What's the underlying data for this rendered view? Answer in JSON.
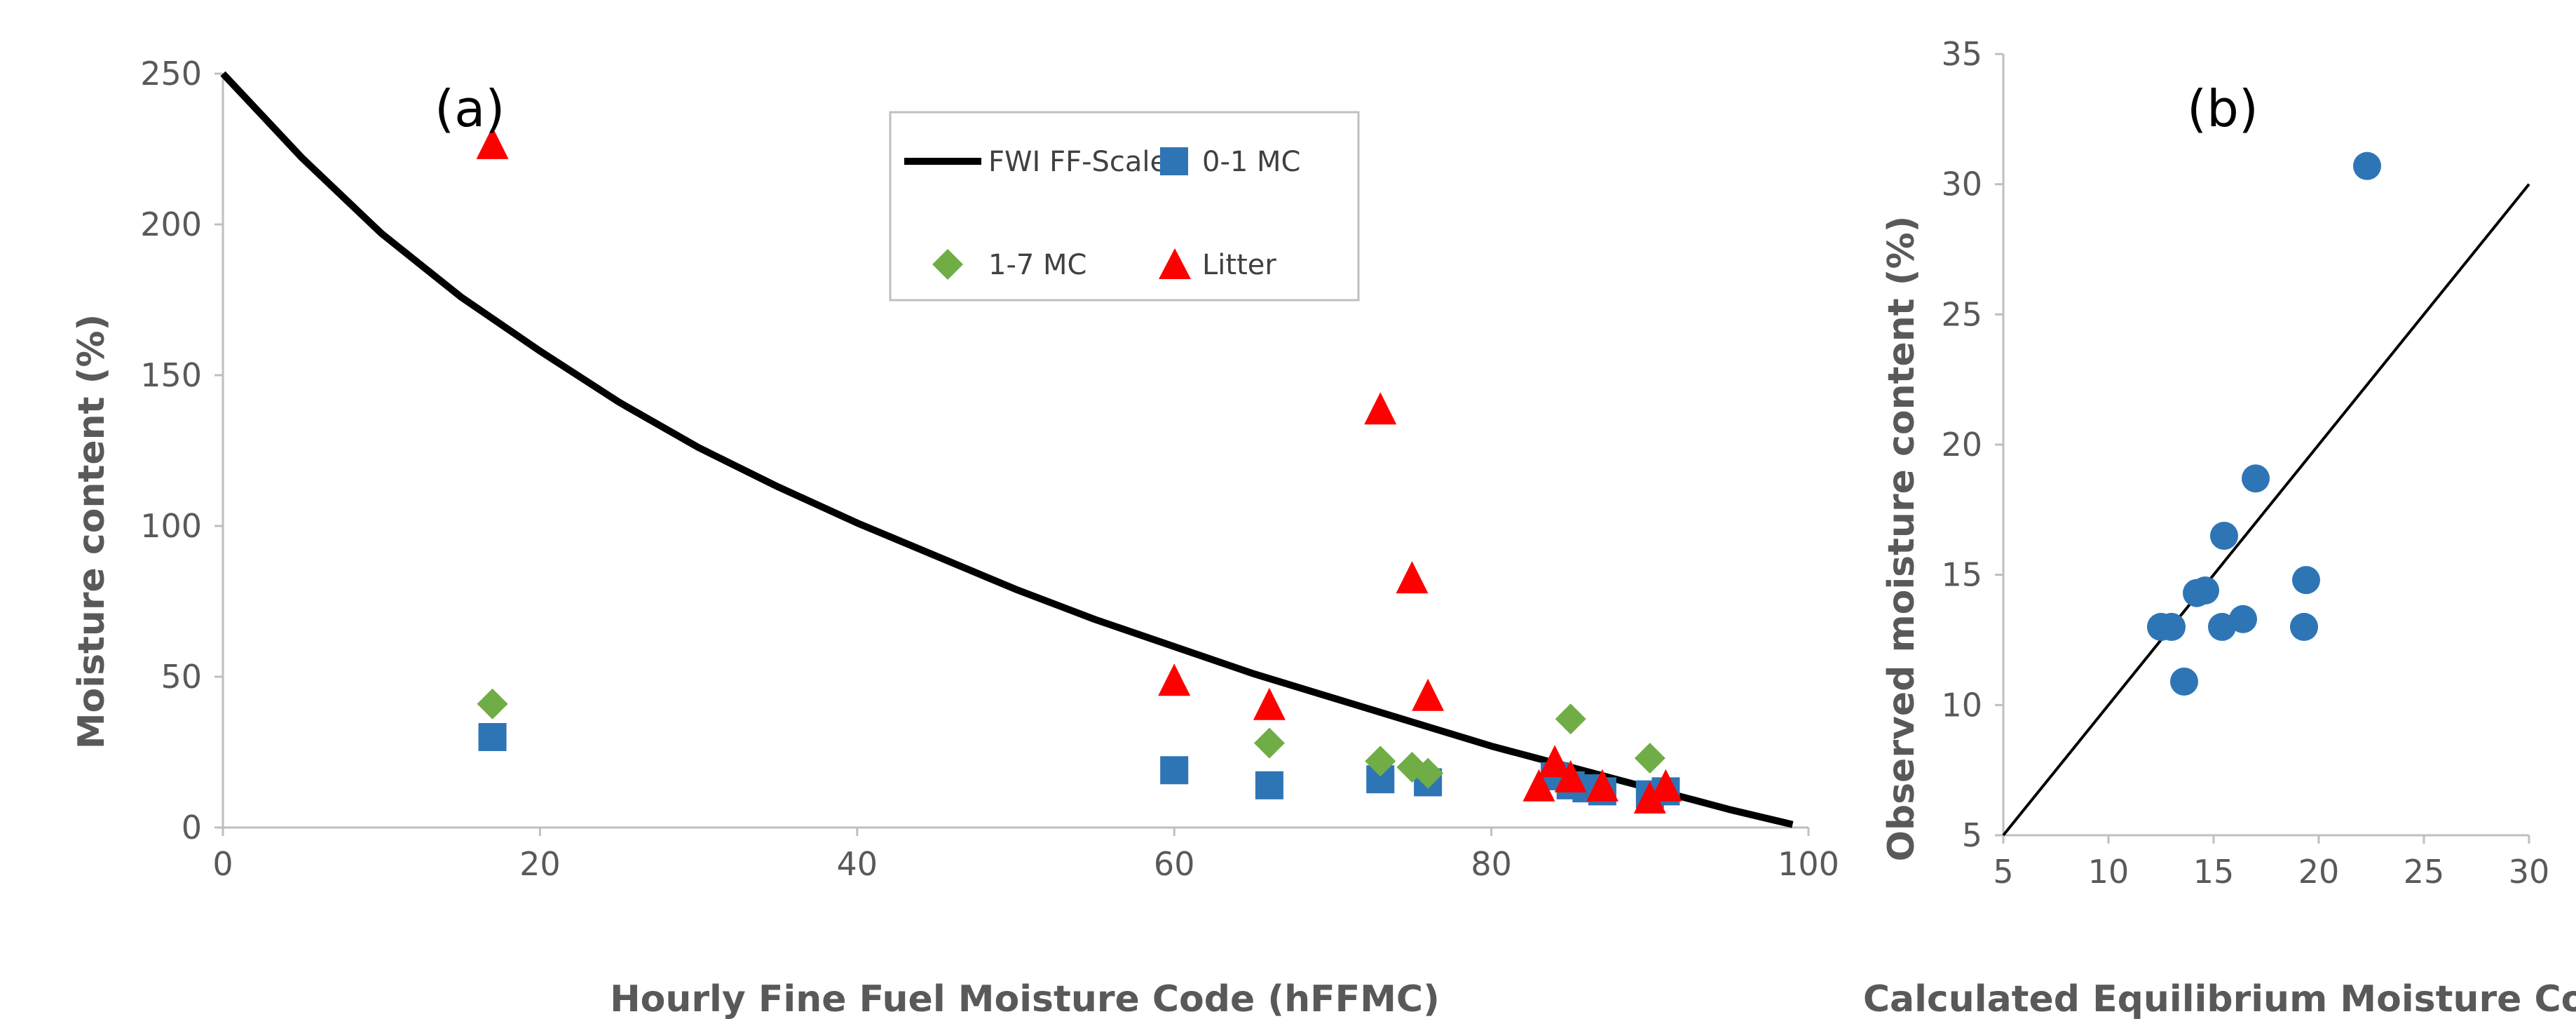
{
  "chart_data": [
    {
      "type": "scatter",
      "panel_label": "(a)",
      "xlabel": "Hourly Fine Fuel Moisture Code (hFFMC)",
      "ylabel": "Moisture content (%)",
      "xlim": [
        0,
        100
      ],
      "ylim": [
        0,
        250
      ],
      "xticks": [
        0,
        20,
        40,
        60,
        80,
        100
      ],
      "yticks": [
        0,
        50,
        100,
        150,
        200,
        250
      ],
      "grid": false,
      "legend_position": "top-right",
      "colors": {
        "curve": "#000000",
        "mc01": "#2e75b6",
        "mc17": "#70ad47",
        "litter": "#ff0000"
      },
      "series": [
        {
          "name": "FWI FF-Scale",
          "kind": "line",
          "x": [
            0,
            5,
            10,
            15,
            20,
            25,
            30,
            35,
            40,
            45,
            50,
            55,
            60,
            65,
            70,
            75,
            80,
            85,
            90,
            95,
            99
          ],
          "y": [
            250,
            222,
            197,
            176,
            158,
            141,
            126,
            113,
            101,
            90,
            79,
            69,
            60,
            51,
            43,
            35,
            27,
            20,
            13,
            6,
            1
          ]
        },
        {
          "name": "0-1 MC",
          "kind": "square",
          "x": [
            17,
            60,
            66,
            73,
            76,
            84,
            85,
            86,
            87,
            90,
            91
          ],
          "y": [
            30,
            19,
            14,
            16,
            15,
            17,
            14,
            13,
            12,
            11,
            12
          ]
        },
        {
          "name": "1-7 MC",
          "kind": "diamond",
          "x": [
            17,
            66,
            73,
            75,
            76,
            85,
            90
          ],
          "y": [
            41,
            28,
            22,
            20,
            18,
            36,
            23
          ]
        },
        {
          "name": "Litter",
          "kind": "triangle",
          "x": [
            17,
            60,
            66,
            73,
            75,
            76,
            83,
            84,
            85,
            87,
            90,
            91
          ],
          "y": [
            227,
            49,
            41,
            139,
            83,
            44,
            14,
            22,
            17,
            14,
            10,
            14
          ]
        }
      ]
    },
    {
      "type": "scatter",
      "panel_label": "(b)",
      "xlabel": "Calculated Equilibrium Moisture Content (%)",
      "ylabel": "Observed  moisture content (%)",
      "xlim": [
        5,
        30
      ],
      "ylim": [
        5,
        35
      ],
      "xticks": [
        5,
        10,
        15,
        20,
        25,
        30
      ],
      "yticks": [
        5,
        10,
        15,
        20,
        25,
        30,
        35
      ],
      "grid": false,
      "colors": {
        "points": "#2e75b6",
        "line": "#000000"
      },
      "reference_line": {
        "x": [
          5,
          30
        ],
        "y": [
          5,
          30
        ]
      },
      "points": {
        "x": [
          12.5,
          13.0,
          13.6,
          14.2,
          14.6,
          15.4,
          15.5,
          16.4,
          17.0,
          19.3,
          19.4,
          22.3
        ],
        "y": [
          13.0,
          13.0,
          10.9,
          14.3,
          14.4,
          13.0,
          16.5,
          13.3,
          18.7,
          13.0,
          14.8,
          30.7
        ]
      }
    }
  ]
}
